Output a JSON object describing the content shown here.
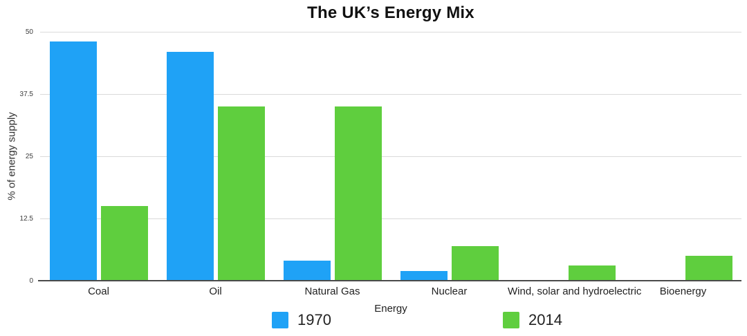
{
  "title": "The UK’s Energy Mix",
  "chart_data": {
    "type": "bar",
    "title": "The UK’s Energy Mix",
    "xlabel": "Energy",
    "ylabel": "% of energy supply",
    "categories": [
      "Coal",
      "Oil",
      "Natural Gas",
      "Nuclear",
      "Wind, solar and hydroelectric",
      "Bioenergy"
    ],
    "series": [
      {
        "name": "1970",
        "color": "#1fa2f6",
        "values": [
          48,
          46,
          4,
          2,
          0,
          0
        ]
      },
      {
        "name": "2014",
        "color": "#5fce3e",
        "values": [
          15,
          35,
          35,
          7,
          3,
          5
        ]
      }
    ],
    "ylim": [
      0,
      50
    ],
    "yticks": [
      0,
      12.5,
      25,
      37.5,
      50
    ],
    "grid": true,
    "legend_position": "bottom"
  },
  "colors": {
    "series_1970": "#1fa2f6",
    "series_2014": "#5fce3e",
    "gridline": "#dadada",
    "axis_line": "#4a4a4a",
    "title_text": "#111111"
  }
}
